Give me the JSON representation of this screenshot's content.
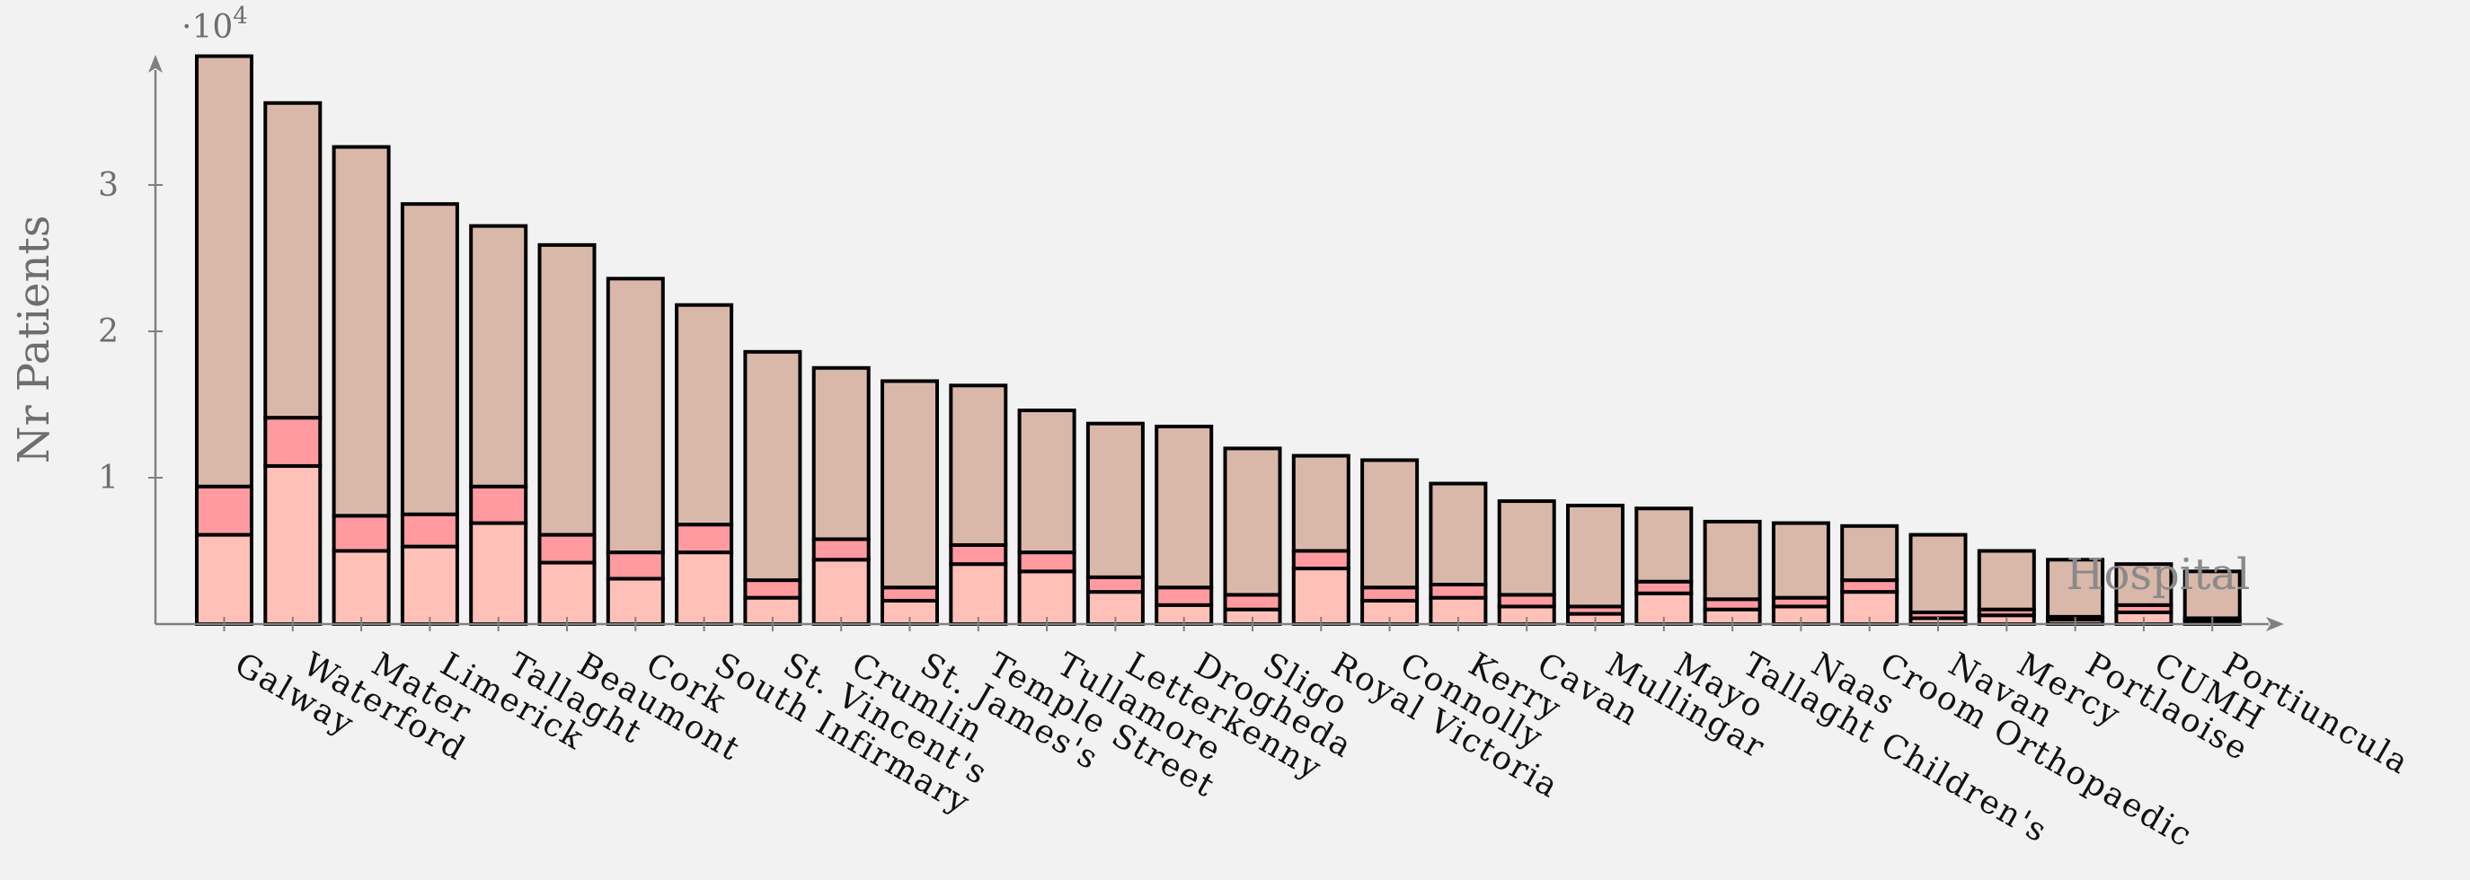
{
  "chart_data": {
    "type": "bar",
    "stacked": true,
    "title": "",
    "xlabel": "Hospital",
    "ylabel": "Nr Patients",
    "y_multiplier_label": "·10",
    "y_multiplier_exponent": "4",
    "ylim": [
      0,
      3.9
    ],
    "yticks": [
      1,
      2,
      3
    ],
    "ytick_labels": [
      "1",
      "2",
      "3"
    ],
    "grid": false,
    "categories": [
      "Galway",
      "Waterford",
      "Mater",
      "Limerick",
      "Tallaght",
      "Beaumont",
      "Cork",
      "South Infirmary",
      "St. Vincent's",
      "Crumlin",
      "St. James's",
      "Temple Street",
      "Tullamore",
      "Letterkenny",
      "Drogheda",
      "Sligo",
      "Royal Victoria",
      "Connolly",
      "Kerry",
      "Cavan",
      "Mullingar",
      "Mayo",
      "Tallaght Children's",
      "Naas",
      "Croom Orthopaedic",
      "Navan",
      "Mercy",
      "Portlaoise",
      "CUMH",
      "Portiuncula"
    ],
    "series": [
      {
        "color": "#ffc0b8",
        "values": [
          0.61,
          1.08,
          0.5,
          0.53,
          0.69,
          0.42,
          0.31,
          0.49,
          0.18,
          0.44,
          0.16,
          0.41,
          0.36,
          0.22,
          0.13,
          0.1,
          0.38,
          0.16,
          0.18,
          0.12,
          0.07,
          0.21,
          0.1,
          0.12,
          0.22,
          0.04,
          0.06,
          0.03,
          0.08,
          0.02
        ]
      },
      {
        "color": "#ff9aa0",
        "values": [
          0.33,
          0.33,
          0.24,
          0.22,
          0.25,
          0.19,
          0.18,
          0.19,
          0.12,
          0.14,
          0.09,
          0.13,
          0.13,
          0.1,
          0.12,
          0.1,
          0.12,
          0.09,
          0.09,
          0.08,
          0.05,
          0.08,
          0.07,
          0.06,
          0.08,
          0.04,
          0.04,
          0.02,
          0.05,
          0.02
        ]
      },
      {
        "color": "#d9b8aa",
        "values": [
          2.94,
          2.15,
          2.52,
          2.12,
          1.78,
          1.98,
          1.87,
          1.5,
          1.56,
          1.17,
          1.41,
          1.09,
          0.97,
          1.05,
          1.1,
          1.0,
          0.65,
          0.87,
          0.69,
          0.64,
          0.69,
          0.5,
          0.53,
          0.51,
          0.37,
          0.53,
          0.4,
          0.39,
          0.28,
          0.32
        ]
      }
    ]
  }
}
